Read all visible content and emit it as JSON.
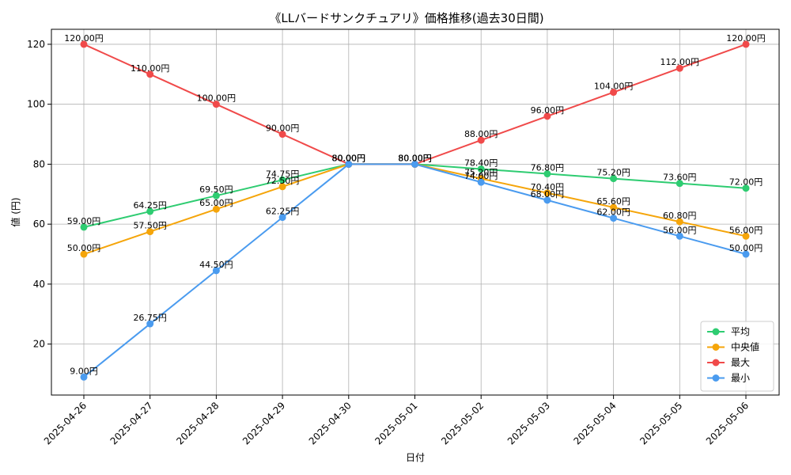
{
  "chart_data": {
    "type": "line",
    "title": "《LLバードサンクチュアリ》価格推移(過去30日間)",
    "xlabel": "日付",
    "ylabel": "値 (円)",
    "categories": [
      "2025-04-26",
      "2025-04-27",
      "2025-04-28",
      "2025-04-29",
      "2025-04-30",
      "2025-05-01",
      "2025-05-02",
      "2025-05-03",
      "2025-05-04",
      "2025-05-05",
      "2025-05-06"
    ],
    "ylim": [
      3,
      125
    ],
    "yticks": [
      20,
      40,
      60,
      80,
      100,
      120
    ],
    "grid": true,
    "legend_position": "bottom-right",
    "label_suffix": "円",
    "series": [
      {
        "name": "平均",
        "color": "#2ecc71",
        "values": [
          59.0,
          64.25,
          69.5,
          74.75,
          80.0,
          80.0,
          78.4,
          76.8,
          75.2,
          73.6,
          72.0
        ]
      },
      {
        "name": "中央値",
        "color": "#f5a50a",
        "values": [
          50.0,
          57.5,
          65.0,
          72.5,
          80.0,
          80.0,
          75.2,
          70.4,
          65.6,
          60.8,
          56.0
        ]
      },
      {
        "name": "最大",
        "color": "#f04a4a",
        "values": [
          120.0,
          110.0,
          100.0,
          90.0,
          80.0,
          80.0,
          88.0,
          96.0,
          104.0,
          112.0,
          120.0
        ]
      },
      {
        "name": "最小",
        "color": "#4a9bef",
        "values": [
          9.0,
          26.75,
          44.5,
          62.25,
          80.0,
          80.0,
          74.0,
          68.0,
          62.0,
          56.0,
          50.0
        ]
      }
    ]
  }
}
